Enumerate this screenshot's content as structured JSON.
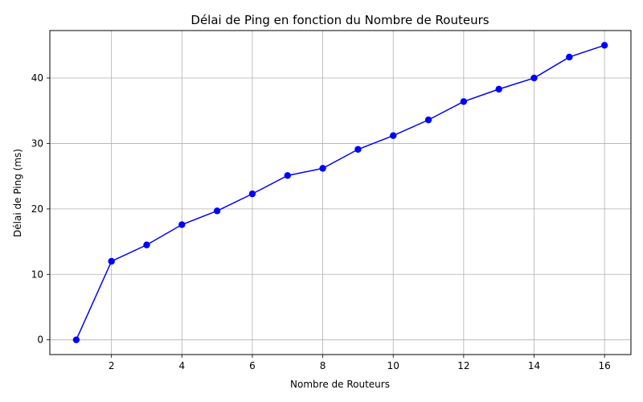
{
  "chart_data": {
    "type": "line",
    "title": "Délai de Ping en fonction du Nombre de Routeurs",
    "xlabel": "Nombre de Routeurs",
    "ylabel": "Délai de Ping (ms)",
    "xlim": [
      0.25,
      16.75
    ],
    "ylim": [
      -2.25,
      47.25
    ],
    "xticks": [
      2,
      4,
      6,
      8,
      10,
      12,
      14,
      16
    ],
    "yticks": [
      0,
      10,
      20,
      30,
      40
    ],
    "grid": true,
    "series": [
      {
        "color": "#0000ff",
        "marker": "circle",
        "x": [
          1,
          2,
          3,
          4,
          5,
          6,
          7,
          8,
          9,
          10,
          11,
          12,
          13,
          14,
          15,
          16
        ],
        "y": [
          0,
          12.0,
          14.5,
          17.6,
          19.7,
          22.3,
          25.1,
          26.2,
          29.1,
          31.2,
          33.6,
          36.4,
          38.3,
          40.0,
          43.2,
          45.0
        ]
      }
    ]
  }
}
